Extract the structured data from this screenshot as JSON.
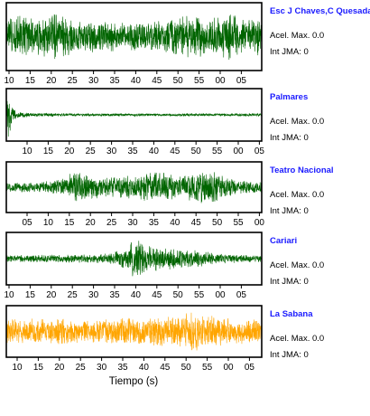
{
  "x_axis_title": "Tiempo (s)",
  "chart_data": [
    {
      "type": "line",
      "station": "Esc J Chaves,C Quesada",
      "accel_label": "Acel. Max. 0.0",
      "jma_label": "Int JMA: 0",
      "color": "#006400",
      "tick_labels": [
        "10",
        "15",
        "20",
        "25",
        "30",
        "35",
        "40",
        "45",
        "50",
        "55",
        "00",
        "05"
      ],
      "envelope": [
        [
          0,
          0.55
        ],
        [
          0.05,
          0.75
        ],
        [
          0.12,
          0.6
        ],
        [
          0.18,
          0.85
        ],
        [
          0.25,
          0.6
        ],
        [
          0.3,
          0.5
        ],
        [
          0.38,
          0.5
        ],
        [
          0.45,
          0.45
        ],
        [
          0.55,
          0.45
        ],
        [
          0.65,
          0.55
        ],
        [
          0.72,
          0.75
        ],
        [
          0.8,
          0.55
        ],
        [
          0.88,
          0.85
        ],
        [
          0.93,
          0.55
        ],
        [
          1,
          0.6
        ]
      ]
    },
    {
      "type": "line",
      "station": "Palmares",
      "accel_label": "Acel. Max. 0.0",
      "jma_label": "Int JMA: 0",
      "color": "#006400",
      "tick_labels": [
        "10",
        "15",
        "20",
        "25",
        "30",
        "35",
        "40",
        "45",
        "50",
        "55",
        "00",
        "05"
      ],
      "envelope": [
        [
          0,
          0.9
        ],
        [
          0.01,
          0.95
        ],
        [
          0.025,
          0.35
        ],
        [
          0.05,
          0.12
        ],
        [
          0.1,
          0.08
        ],
        [
          0.3,
          0.06
        ],
        [
          1,
          0.06
        ]
      ]
    },
    {
      "type": "line",
      "station": "Teatro Nacional",
      "accel_label": "Acel. Max. 0.0",
      "jma_label": "Int JMA: 0",
      "color": "#006400",
      "tick_labels": [
        "05",
        "10",
        "15",
        "20",
        "25",
        "30",
        "35",
        "40",
        "45",
        "50",
        "55",
        "00"
      ],
      "envelope": [
        [
          0,
          0.2
        ],
        [
          0.15,
          0.25
        ],
        [
          0.22,
          0.4
        ],
        [
          0.28,
          0.75
        ],
        [
          0.33,
          0.5
        ],
        [
          0.45,
          0.45
        ],
        [
          0.6,
          0.8
        ],
        [
          0.68,
          0.45
        ],
        [
          0.8,
          0.85
        ],
        [
          0.85,
          0.45
        ],
        [
          0.92,
          0.3
        ],
        [
          1,
          0.25
        ]
      ]
    },
    {
      "type": "line",
      "station": "Cariari",
      "accel_label": "Acel. Max. 0.0",
      "jma_label": "Int JMA: 0",
      "color": "#006400",
      "tick_labels": [
        "10",
        "15",
        "20",
        "25",
        "30",
        "35",
        "40",
        "45",
        "50",
        "55",
        "00",
        "05"
      ],
      "envelope": [
        [
          0,
          0.15
        ],
        [
          0.35,
          0.18
        ],
        [
          0.45,
          0.35
        ],
        [
          0.5,
          0.95
        ],
        [
          0.55,
          0.6
        ],
        [
          0.6,
          0.5
        ],
        [
          0.7,
          0.4
        ],
        [
          0.78,
          0.3
        ],
        [
          0.85,
          0.2
        ],
        [
          1,
          0.15
        ]
      ]
    },
    {
      "type": "line",
      "station": "La Sabana",
      "accel_label": "Acel. Max. 0.0",
      "jma_label": "Int JMA: 0",
      "color": "#FFA500",
      "tick_labels": [
        "10",
        "15",
        "20",
        "25",
        "30",
        "35",
        "40",
        "45",
        "50",
        "55",
        "00",
        "05"
      ],
      "envelope": [
        [
          0,
          0.6
        ],
        [
          0.1,
          0.55
        ],
        [
          0.2,
          0.6
        ],
        [
          0.3,
          0.5
        ],
        [
          0.45,
          0.6
        ],
        [
          0.6,
          0.65
        ],
        [
          0.7,
          0.75
        ],
        [
          0.73,
          0.95
        ],
        [
          0.78,
          0.7
        ],
        [
          0.9,
          0.55
        ],
        [
          1,
          0.5
        ]
      ]
    }
  ]
}
